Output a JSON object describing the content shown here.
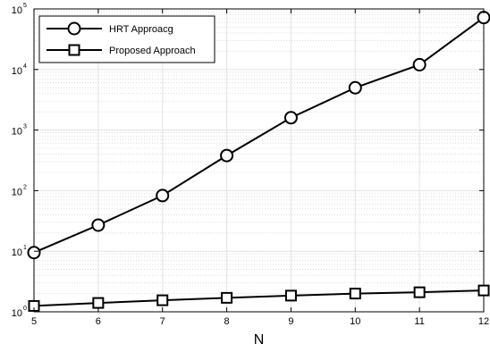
{
  "chart_data": {
    "type": "line",
    "title": "",
    "xlabel": "N",
    "ylabel": "",
    "y_scale": "log",
    "x": [
      5,
      6,
      7,
      8,
      9,
      10,
      11,
      12
    ],
    "xlim": [
      5,
      12
    ],
    "ylim": [
      1,
      100000
    ],
    "x_ticks": [
      "5",
      "6",
      "7",
      "8",
      "9",
      "10",
      "11",
      "12"
    ],
    "y_ticks": [
      {
        "base": "10",
        "exp": "0"
      },
      {
        "base": "10",
        "exp": "1"
      },
      {
        "base": "10",
        "exp": "2"
      },
      {
        "base": "10",
        "exp": "3"
      },
      {
        "base": "10",
        "exp": "4"
      },
      {
        "base": "10",
        "exp": "5"
      }
    ],
    "grid": true,
    "legend_position": "top-left",
    "series": [
      {
        "name": "HRT Approacg",
        "marker": "circle",
        "color": "#000000",
        "values": [
          9.5,
          27,
          83,
          380,
          1600,
          5000,
          12000,
          72000
        ]
      },
      {
        "name": "Proposed Approach",
        "marker": "square",
        "color": "#000000",
        "values": [
          1.25,
          1.4,
          1.55,
          1.7,
          1.85,
          2.0,
          2.1,
          2.25
        ]
      }
    ]
  }
}
